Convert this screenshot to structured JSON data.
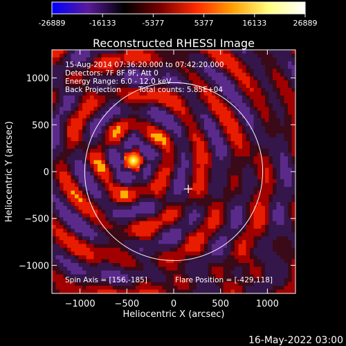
{
  "colorbar": {
    "colors": [
      "#0000ff",
      "#5a1a9a",
      "#000000",
      "#7a0000",
      "#ff2a00",
      "#ffa000",
      "#ffff80",
      "#ffffff"
    ],
    "tick_labels": [
      "-26889",
      "-16133",
      "-5377",
      "5377",
      "16133",
      "26889"
    ]
  },
  "chart_data": {
    "type": "heatmap",
    "title": "Reconstructed RHESSI Image",
    "xlabel": "Heliocentric X (arcsec)",
    "ylabel": "Heliocentric Y (arcsec)",
    "xlim": [
      -1300,
      1300
    ],
    "ylim": [
      -1300,
      1300
    ],
    "x_ticks": [
      -1000,
      -500,
      0,
      500,
      1000
    ],
    "y_ticks": [
      -1000,
      -500,
      0,
      500,
      1000
    ],
    "value_range": [
      -26889,
      26889
    ],
    "solar_limb_radius": 950,
    "source": {
      "x": -429,
      "y": 118,
      "peak": 26889
    },
    "flare_position": [
      -429,
      118
    ],
    "spin_axis": [
      156,
      -185
    ],
    "spin_axis_marker": "cross",
    "annotations": [
      "15-Aug-2014 07:36:20.000 to 07:42:20.000",
      "Detectors: 7F 8F 9F, Att 0",
      "Energy Range: 6.0 - 12.0 keV",
      "Back Projection",
      "Total counts: 5.85E+04"
    ],
    "spin_axis_label": "Spin Axis = [156,-185]",
    "flare_position_label": "Flare Position = [-429,118]"
  },
  "footer": {
    "timestamp": "16-May-2022 03:00"
  }
}
